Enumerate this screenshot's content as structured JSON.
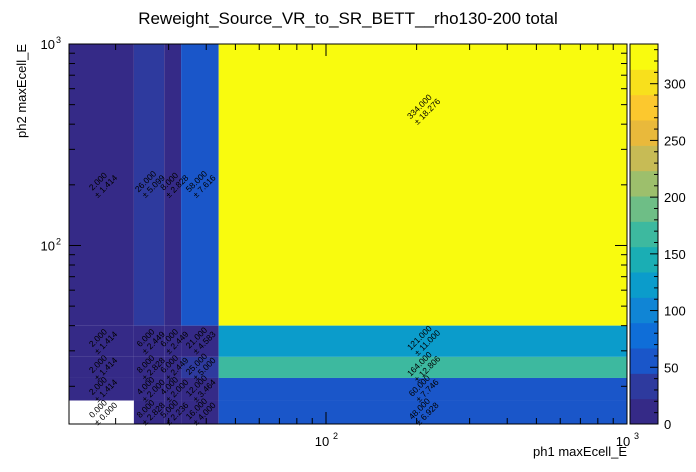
{
  "chart_data": {
    "type": "heatmap",
    "title": "Reweight_Source_VR_to_SR_BETT__rho130-200 total",
    "xlabel": "ph1 maxEcell_E",
    "ylabel": "ph2 maxEcell_E",
    "xscale": "log",
    "yscale": "log",
    "xlim": [
      14,
      1000
    ],
    "ylim": [
      13,
      1000
    ],
    "x_ticks": [
      {
        "value": 100,
        "label": "10",
        "exp": "2"
      },
      {
        "value": 1000,
        "label": "10",
        "exp": "3"
      }
    ],
    "y_ticks": [
      {
        "value": 100,
        "label": "10",
        "exp": "2"
      },
      {
        "value": 1000,
        "label": "10",
        "exp": "3"
      }
    ],
    "x_edges": [
      14,
      23,
      29,
      33,
      44,
      1000
    ],
    "y_edges": [
      13,
      17,
      22,
      28,
      40,
      1000
    ],
    "zlim": [
      0,
      335
    ],
    "colorbar_ticks": [
      0,
      50,
      100,
      150,
      200,
      250,
      300
    ],
    "cells": [
      {
        "xi": 0,
        "yi": 4,
        "value": 2,
        "label": "2.000",
        "err": "± 1.414"
      },
      {
        "xi": 1,
        "yi": 4,
        "value": 26,
        "label": "26.000",
        "err": "± 5.099"
      },
      {
        "xi": 2,
        "yi": 4,
        "value": 8,
        "label": "8.000",
        "err": "± 2.828"
      },
      {
        "xi": 3,
        "yi": 4,
        "value": 58,
        "label": "58.000",
        "err": "± 7.616"
      },
      {
        "xi": 4,
        "yi": 4,
        "value": 334,
        "label": "334.000",
        "err": "± 18.276"
      },
      {
        "xi": 0,
        "yi": 3,
        "value": 2,
        "label": "2.000",
        "err": "± 1.414"
      },
      {
        "xi": 1,
        "yi": 3,
        "value": 6,
        "label": "6.000",
        "err": "± 2.449"
      },
      {
        "xi": 2,
        "yi": 3,
        "value": 6,
        "label": "6.000",
        "err": "± 2.449"
      },
      {
        "xi": 3,
        "yi": 3,
        "value": 21,
        "label": "21.000",
        "err": "± 4.583"
      },
      {
        "xi": 4,
        "yi": 3,
        "value": 121,
        "label": "121.000",
        "err": "± 11.000"
      },
      {
        "xi": 0,
        "yi": 2,
        "value": 2,
        "label": "2.000",
        "err": "± 1.414"
      },
      {
        "xi": 1,
        "yi": 2,
        "value": 8,
        "label": "8.000",
        "err": "± 2.828"
      },
      {
        "xi": 2,
        "yi": 2,
        "value": 6,
        "label": "6.000",
        "err": "± 2.449"
      },
      {
        "xi": 3,
        "yi": 2,
        "value": 25,
        "label": "25.000",
        "err": "± 5.000"
      },
      {
        "xi": 4,
        "yi": 2,
        "value": 164,
        "label": "164.000",
        "err": "± 12.806"
      },
      {
        "xi": 0,
        "yi": 1,
        "value": 2,
        "label": "2.000",
        "err": "± 1.414"
      },
      {
        "xi": 1,
        "yi": 1,
        "value": 4,
        "label": "4.000",
        "err": "± 2.000"
      },
      {
        "xi": 2,
        "yi": 1,
        "value": 4,
        "label": "4.000",
        "err": "± 2.000"
      },
      {
        "xi": 3,
        "yi": 1,
        "value": 12,
        "label": "12.000",
        "err": "± 3.464"
      },
      {
        "xi": 4,
        "yi": 1,
        "value": 60,
        "label": "60.000",
        "err": "± 7.746"
      },
      {
        "xi": 0,
        "yi": 0,
        "value": 0,
        "label": "0.000",
        "err": "± 0.000"
      },
      {
        "xi": 1,
        "yi": 0,
        "value": 8,
        "label": "8.000",
        "err": "± 2.828"
      },
      {
        "xi": 2,
        "yi": 0,
        "value": 5,
        "label": "5.000",
        "err": "± 2.236"
      },
      {
        "xi": 3,
        "yi": 0,
        "value": 16,
        "label": "16.000",
        "err": "± 4.000"
      },
      {
        "xi": 4,
        "yi": 0,
        "value": 48,
        "label": "48.000",
        "err": "± 6.928"
      }
    ],
    "palette": [
      "#352a87",
      "#2e3a9e",
      "#1a56c9",
      "#0f6ed8",
      "#1085d5",
      "#0b9ccb",
      "#1aaeb4",
      "#3db99f",
      "#6ebe86",
      "#9dbf6c",
      "#c7bb55",
      "#e9b93b",
      "#fcc82e",
      "#f8e01c",
      "#f9fb0e"
    ],
    "empty_color": "#ffffff",
    "grid": false,
    "legend": "colorbar-right"
  }
}
